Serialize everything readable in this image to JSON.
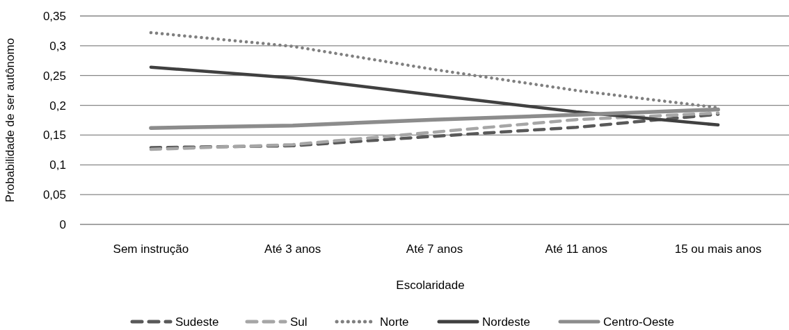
{
  "chart_data": {
    "type": "line",
    "xlabel": "Escolaridade",
    "ylabel": "Probabilidade de ser autônomo",
    "categories": [
      "Sem instrução",
      "Até 3 anos",
      "Até 7 anos",
      "Até 11 anos",
      "15 ou mais anos"
    ],
    "ylim": [
      0,
      0.35
    ],
    "yticks": [
      {
        "value": 0,
        "label": "0"
      },
      {
        "value": 0.05,
        "label": "0,05"
      },
      {
        "value": 0.1,
        "label": "0,1"
      },
      {
        "value": 0.15,
        "label": "0,15"
      },
      {
        "value": 0.2,
        "label": "0,2"
      },
      {
        "value": 0.25,
        "label": "0,25"
      },
      {
        "value": 0.3,
        "label": "0,3"
      },
      {
        "value": 0.35,
        "label": "0,35"
      }
    ],
    "grid": "y",
    "legend": "bottom",
    "marker": "none",
    "series": [
      {
        "name": "Sudeste",
        "color": "#595959",
        "line_style": "dashed",
        "values": [
          0.129,
          0.132,
          0.148,
          0.163,
          0.185
        ]
      },
      {
        "name": "Sul",
        "color": "#a6a6a6",
        "line_style": "dashed",
        "values": [
          0.126,
          0.134,
          0.155,
          0.176,
          0.187
        ]
      },
      {
        "name": "Norte",
        "color": "#7f7f7f",
        "line_style": "dotted",
        "values": [
          0.322,
          0.299,
          0.26,
          0.225,
          0.196
        ]
      },
      {
        "name": "Nordeste",
        "color": "#404040",
        "line_style": "solid",
        "values": [
          0.264,
          0.246,
          0.217,
          0.189,
          0.167
        ]
      },
      {
        "name": "Centro-Oeste",
        "color": "#8c8c8c",
        "line_style": "solid",
        "values": [
          0.162,
          0.166,
          0.176,
          0.184,
          0.193
        ]
      }
    ]
  }
}
